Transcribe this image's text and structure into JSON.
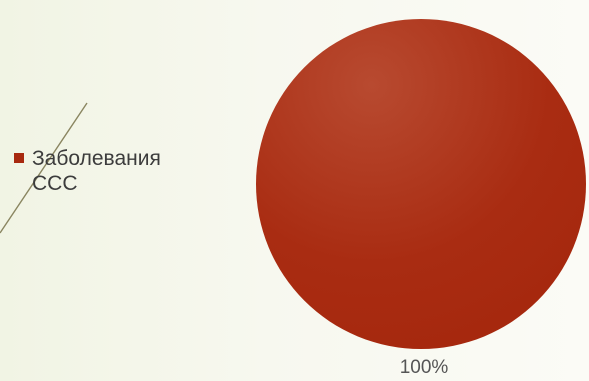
{
  "chart_data": {
    "type": "pie",
    "categories": [
      "Заболевания ССС"
    ],
    "values": [
      100
    ],
    "data_labels": [
      "100%"
    ],
    "legend_position": "left",
    "colors": {
      "slice": "#a8290f",
      "slice_highlight": "#b23e20",
      "legend_swatch": "#a8290f"
    }
  },
  "legend": {
    "items": [
      {
        "label": "Заболевания ССС",
        "color": "#a8290f"
      }
    ]
  },
  "data_label": "100%"
}
